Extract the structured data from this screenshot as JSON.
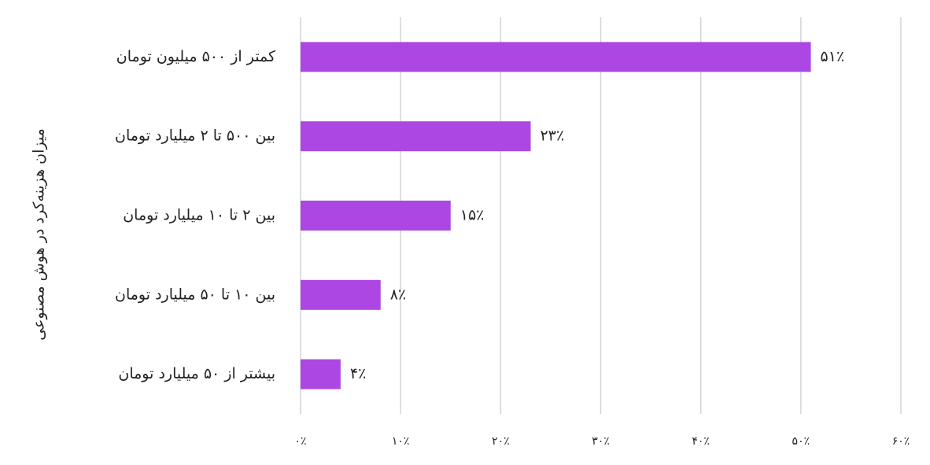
{
  "chart_data": {
    "type": "barh",
    "y_axis_label": "میزان هزینه‌کرد در هوش مصنوعی",
    "categories": [
      "کمتر از ۵۰۰ میلیون تومان",
      "بین ۵۰۰ تا ۲ میلیارد تومان",
      "بین ۲ تا ۱۰ میلیارد تومان",
      "بین ۱۰ تا ۵۰ میلیارد تومان",
      "بیشتر از ۵۰ میلیارد تومان"
    ],
    "values": [
      51,
      23,
      15,
      8,
      4
    ],
    "value_labels": [
      "۵۱٪",
      "۲۳٪",
      "۱۵٪",
      "۸٪",
      "۴٪"
    ],
    "color": "#ac47e3",
    "xlim": [
      0,
      60
    ],
    "xticks": [
      {
        "value": 0,
        "label": "۰٪"
      },
      {
        "value": 10,
        "label": "۱۰٪"
      },
      {
        "value": 20,
        "label": "۲۰٪"
      },
      {
        "value": 30,
        "label": "۳۰٪"
      },
      {
        "value": 40,
        "label": "۴۰٪"
      },
      {
        "value": 50,
        "label": "۵۰٪"
      },
      {
        "value": 60,
        "label": "۶۰٪"
      }
    ],
    "grid": true
  }
}
